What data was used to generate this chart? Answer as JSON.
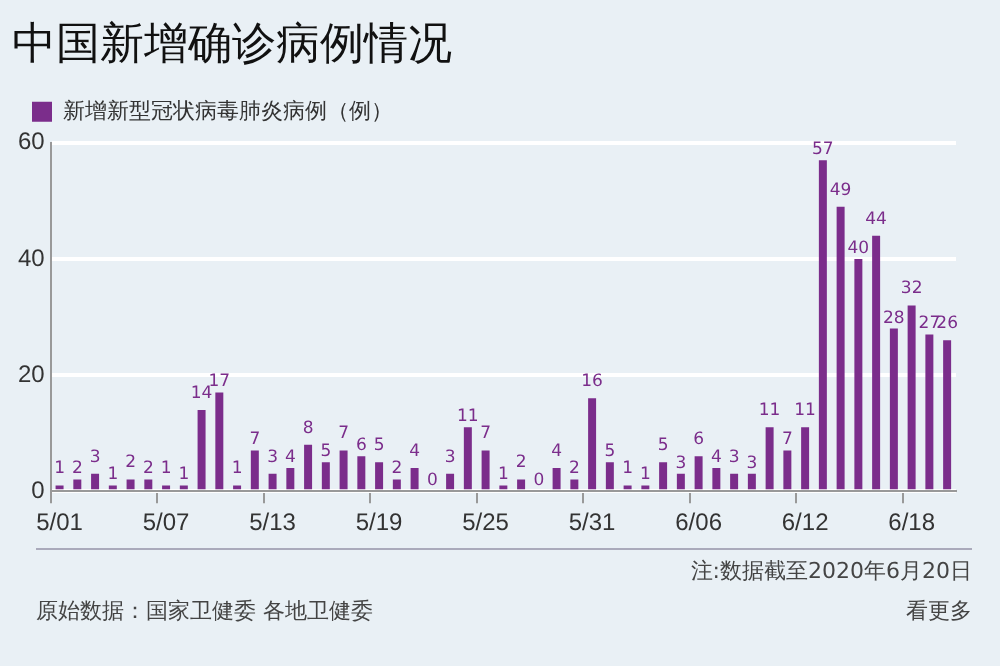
{
  "chart_data": {
    "type": "bar",
    "title": "中国新增确诊病例情况",
    "categories": [
      "5/01",
      null,
      null,
      null,
      null,
      null,
      "5/07",
      null,
      null,
      null,
      null,
      null,
      "5/13",
      null,
      null,
      null,
      null,
      null,
      "5/19",
      null,
      null,
      null,
      null,
      null,
      "5/25",
      null,
      null,
      null,
      null,
      null,
      "5/31",
      null,
      null,
      null,
      null,
      null,
      "6/06",
      null,
      null,
      null,
      null,
      null,
      "6/12",
      null,
      null,
      null,
      null,
      null,
      "6/18",
      null,
      null
    ],
    "series": [
      {
        "name": "新增新型冠状病毒肺炎病例（例）",
        "color": "#7b2d8b",
        "values": [
          1,
          2,
          3,
          1,
          2,
          2,
          1,
          1,
          14,
          17,
          1,
          7,
          3,
          4,
          8,
          5,
          7,
          6,
          5,
          2,
          4,
          0,
          3,
          11,
          7,
          1,
          2,
          0,
          4,
          2,
          16,
          5,
          1,
          1,
          5,
          3,
          6,
          4,
          3,
          3,
          11,
          7,
          11,
          57,
          49,
          40,
          44,
          28,
          32,
          27,
          26
        ]
      }
    ],
    "ylim": [
      0,
      60
    ],
    "yticks": [
      0,
      20,
      40,
      60
    ],
    "grid": "y",
    "legend": "top left",
    "data_labels": true,
    "annotations": [
      "注:数据截至2020年6月20日",
      "原始数据：国家卫健委 各地卫健委",
      "看更多"
    ]
  }
}
